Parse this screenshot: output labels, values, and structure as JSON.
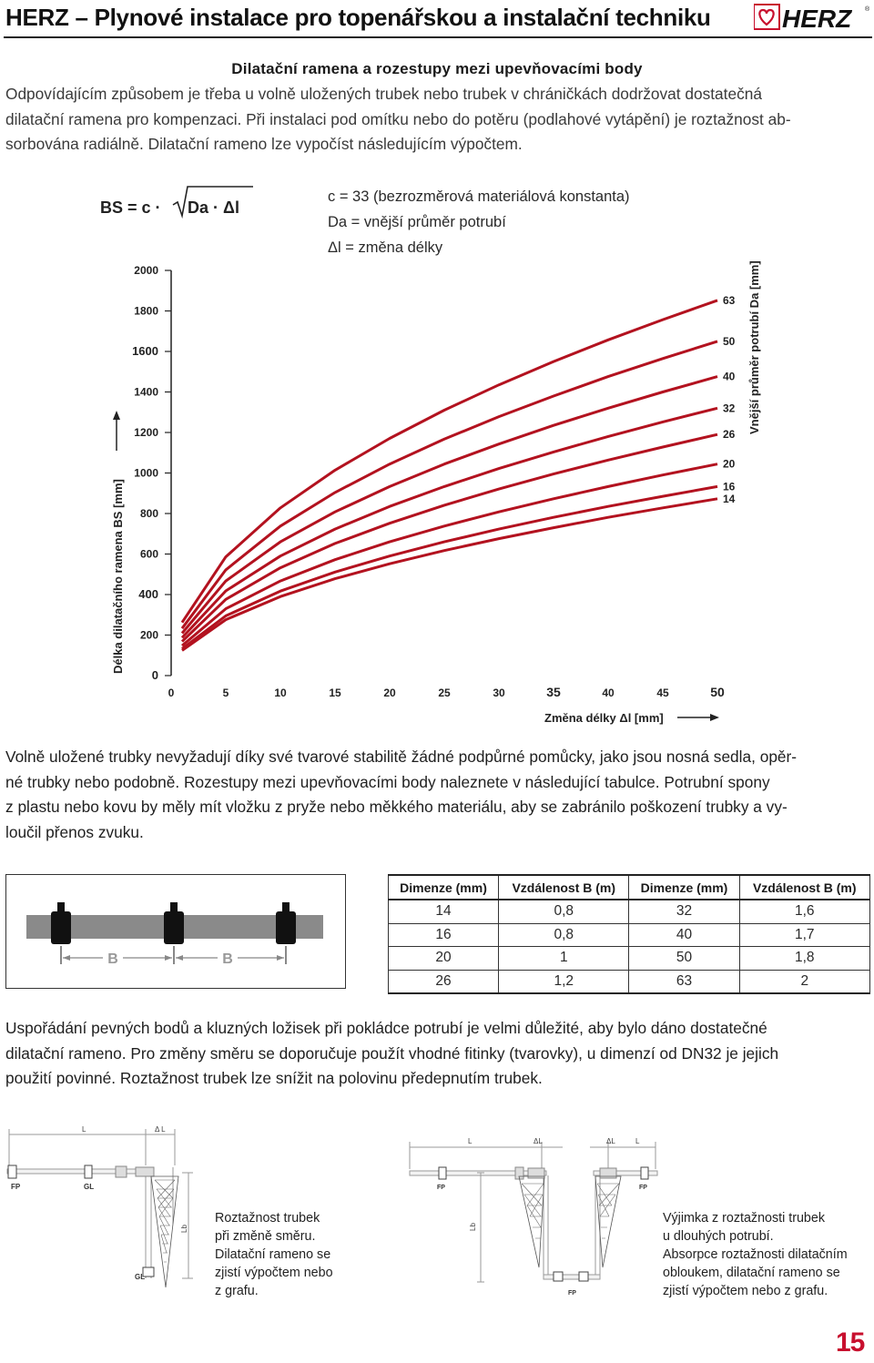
{
  "header": {
    "title": "HERZ – Plynové instalace pro topenářskou a instalační techniku",
    "logo_text": "HERZ",
    "brand_color": "#c8102e"
  },
  "section": {
    "title": "Dilatační ramena a rozestupy mezi upevňovacími body",
    "intro_lines": [
      "Odpovídajícím způsobem je třeba u volně uložených trubek nebo trubek v chráničkách dodržovat dostatečná",
      "dilatační ramena pro kompenzaci. Při instalaci pod omítku nebo do potěru (podlahové vytápění) je roztažnost ab-",
      "sorbována radiálně. Dilatační rameno lze vypočíst následujícím výpočtem."
    ]
  },
  "formula": {
    "lhs": "BS = c · ",
    "radicand": "Da · Δl",
    "legend": [
      "c   = 33 (bezrozměrová materiálová konstanta)",
      "Da = vnější průměr potrubí",
      "Δl  = změna délky"
    ]
  },
  "chart_data": {
    "type": "line",
    "title": "",
    "xlabel": "Změna délky Δl [mm]",
    "ylabel": "Délka dilatačního ramena BS [mm]",
    "legend_title": "Vnější průměr potrubí Da [mm]",
    "xlim": [
      0,
      50
    ],
    "ylim": [
      0,
      2000
    ],
    "x_ticks": [
      "0",
      "5",
      "10",
      "15",
      "20",
      "25",
      "30",
      "35",
      "40",
      "45",
      "50"
    ],
    "y_ticks": [
      "0",
      "200",
      "400",
      "600",
      "800",
      "1000",
      "1200",
      "1400",
      "1600",
      "1800",
      "2000"
    ],
    "grid": false,
    "legend_placement": "right",
    "x": [
      1,
      5,
      10,
      15,
      20,
      25,
      30,
      35,
      40,
      45,
      50
    ],
    "series": [
      {
        "name": "14",
        "values": [
          124,
          276,
          390,
          478,
          552,
          617,
          676,
          730,
          781,
          828,
          873
        ]
      },
      {
        "name": "16",
        "values": [
          132,
          295,
          417,
          511,
          590,
          660,
          723,
          781,
          835,
          885,
          933
        ]
      },
      {
        "name": "20",
        "values": [
          148,
          330,
          467,
          572,
          660,
          738,
          808,
          873,
          933,
          990,
          1044
        ]
      },
      {
        "name": "26",
        "values": [
          168,
          376,
          532,
          652,
          752,
          841,
          921,
          995,
          1064,
          1128,
          1190
        ]
      },
      {
        "name": "32",
        "values": [
          187,
          418,
          590,
          723,
          835,
          933,
          1022,
          1104,
          1180,
          1252,
          1320
        ]
      },
      {
        "name": "40",
        "values": [
          209,
          467,
          660,
          808,
          933,
          1044,
          1143,
          1235,
          1320,
          1400,
          1476
        ]
      },
      {
        "name": "50",
        "values": [
          233,
          522,
          738,
          904,
          1044,
          1167,
          1278,
          1380,
          1476,
          1565,
          1650
        ]
      },
      {
        "name": "63",
        "values": [
          262,
          586,
          828,
          1014,
          1171,
          1310,
          1435,
          1550,
          1657,
          1757,
          1852
        ]
      }
    ]
  },
  "body2_lines": [
    "Volně uložené trubky nevyžadují díky své tvarové stabilitě žádné podpůrné pomůcky, jako jsou nosná sedla, opěr-",
    "né trubky nebo podobně. Rozestupy mezi upevňovacími body naleznete v následující tabulce. Potrubní spony",
    "z plastu nebo kovu by měly mít vložku z pryže nebo měkkého materiálu, aby se zabránilo poškození trubky a vy-",
    "loučil přenos zvuku."
  ],
  "pipe_figure": {
    "label_b1": "B",
    "label_b2": "B"
  },
  "spacing_table": {
    "headers": [
      "Dimenze (mm)",
      "Vzdálenost B (m)",
      "Dimenze (mm)",
      "Vzdálenost B (m)"
    ],
    "rows": [
      [
        "14",
        "0,8",
        "32",
        "1,6"
      ],
      [
        "16",
        "0,8",
        "40",
        "1,7"
      ],
      [
        "20",
        "1",
        "50",
        "1,8"
      ],
      [
        "26",
        "1,2",
        "63",
        "2"
      ]
    ]
  },
  "body3_lines": [
    "Uspořádání pevných bodů a kluzných ložisek při pokládce potrubí je velmi důležité, aby bylo dáno dostatečné",
    "dilatační rameno. Pro změny směru se doporučuje použít vhodné fitinky (tvarovky), u dimenzí od DN32 je jejich",
    "použití povinné. Roztažnost trubek lze snížit na polovinu předepnutím trubek."
  ],
  "diagram_left": {
    "labels": {
      "L": "L",
      "dL": "Δ L",
      "FP": "FP",
      "GL1": "GL",
      "GL2": "GL",
      "Lb": "Lb"
    },
    "caption_lines": [
      "Roztažnost trubek",
      "při změně směru.",
      "Dilatační rameno se",
      "zjistí výpočtem nebo",
      "z grafu."
    ]
  },
  "diagram_right": {
    "labels": {
      "L1": "L",
      "dL1": "ΔL",
      "dL2": "ΔL",
      "L2": "L",
      "Lb": "Lb",
      "FP1": "FP",
      "FP2": "FP",
      "FP3": "FP"
    },
    "caption_lines": [
      "Výjimka z roztažnosti trubek",
      "u dlouhých potrubí.",
      "Absorpce roztažnosti dilatačním",
      "obloukem, dilatační rameno se",
      "zjistí výpočtem nebo z grafu."
    ]
  },
  "page_number": "15"
}
